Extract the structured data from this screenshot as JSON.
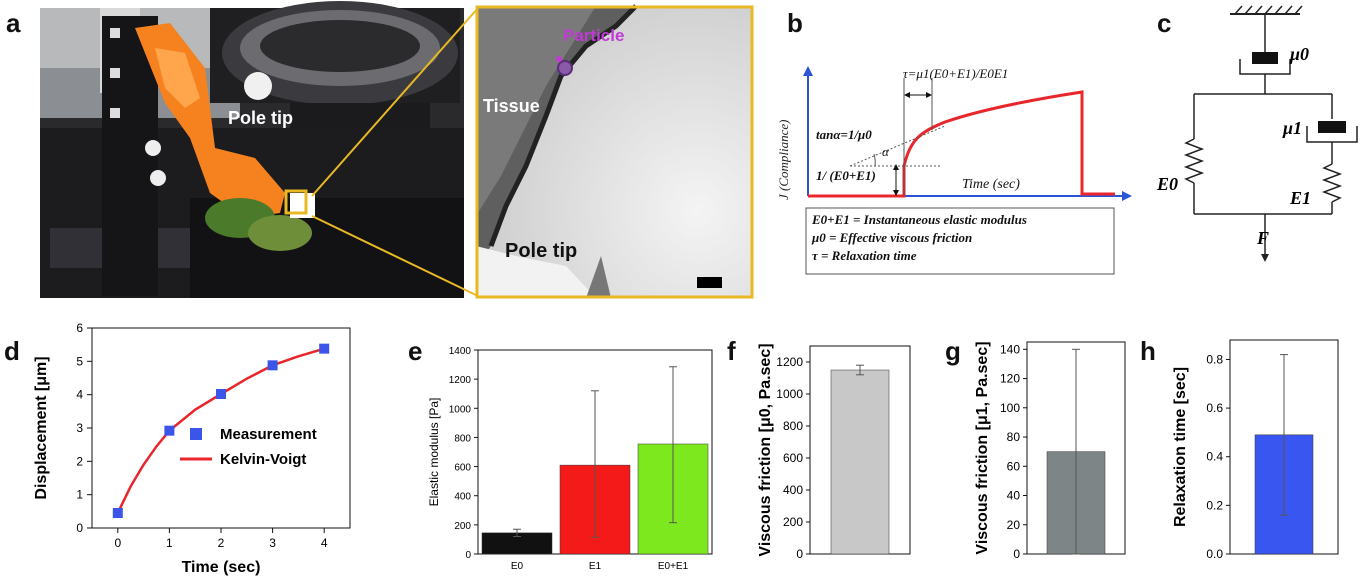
{
  "panel_labels": {
    "a": "a",
    "b": "b",
    "c": "c",
    "d": "d",
    "e": "e",
    "f": "f",
    "g": "g",
    "h": "h"
  },
  "panel_a": {
    "photo_label": "Pole tip",
    "inset": {
      "particle": "Particle",
      "tissue": "Tissue",
      "pole_tip": "Pole tip"
    },
    "colors": {
      "inset_frame": "#e8b923",
      "holder": "#f5821f",
      "particle": "#c03bd6"
    }
  },
  "panel_b": {
    "ylabel": "J (Compliance)",
    "xlabel": "Time (sec)",
    "tau_eq": "τ=μ1(E0+E1)/E0E1",
    "tan_eq": "tanα=1/μ0",
    "alpha": "α",
    "jump_eq": "1/ (E0+E1)",
    "legend": [
      "E0+E1 = Instantaneous elastic modulus",
      "μ0 = Effective viscous friction",
      "τ = Relaxation time"
    ],
    "colors": {
      "curve": "#e8262b",
      "axis": "#2b55d6"
    }
  },
  "panel_c": {
    "mu0": "μ0",
    "mu1": "μ1",
    "e0": "E0",
    "e1": "E1",
    "force": "F"
  },
  "chart_data": [
    {
      "id": "d",
      "type": "scatter",
      "xlabel": "Time (sec)",
      "ylabel": "Displacement [μm]",
      "xlim": [
        -0.5,
        4.5
      ],
      "ylim": [
        0,
        6
      ],
      "xticks": [
        "0",
        "1",
        "2",
        "3",
        "4"
      ],
      "yticks": [
        "0",
        "1",
        "2",
        "3",
        "4",
        "5",
        "6"
      ],
      "series": [
        {
          "name": "Measurement",
          "x": [
            0,
            1,
            2,
            3,
            4
          ],
          "y": [
            0.45,
            2.92,
            4.02,
            4.88,
            5.38
          ],
          "color": "#3a55e8"
        },
        {
          "name": "Kelvin-Voigt",
          "x": [
            0,
            0.25,
            0.5,
            0.75,
            1,
            1.5,
            2,
            2.5,
            3,
            3.5,
            4
          ],
          "y": [
            0.45,
            1.25,
            1.9,
            2.45,
            2.92,
            3.55,
            4.02,
            4.48,
            4.88,
            5.15,
            5.38
          ],
          "color": "#e8262b"
        }
      ],
      "legend_position": "center-right"
    },
    {
      "id": "e",
      "type": "bar",
      "ylabel": "Elastic modulus [Pa]",
      "categories": [
        "E0",
        "E1",
        "E0+E1"
      ],
      "values": [
        145,
        610,
        755
      ],
      "errors": [
        [
          120,
          170
        ],
        [
          115,
          1120
        ],
        [
          215,
          1285
        ]
      ],
      "colors": [
        "#111111",
        "#f51a1a",
        "#7de81e"
      ],
      "ylim": [
        0,
        1400
      ],
      "yticks": [
        "0",
        "200",
        "400",
        "600",
        "800",
        "1000",
        "1200",
        "1400"
      ]
    },
    {
      "id": "f",
      "type": "bar",
      "ylabel": "Viscous friction [μ0, Pa.sec]",
      "categories": [
        ""
      ],
      "values": [
        1150
      ],
      "errors": [
        [
          1120,
          1180
        ]
      ],
      "colors": [
        "#c8c8c8"
      ],
      "ylim": [
        0,
        1300
      ],
      "yticks": [
        "0",
        "200",
        "400",
        "600",
        "800",
        "1000",
        "1200"
      ]
    },
    {
      "id": "g",
      "type": "bar",
      "ylabel": "Viscous friction [μ1, Pa.sec]",
      "categories": [
        ""
      ],
      "values": [
        70
      ],
      "errors": [
        [
          0,
          140
        ]
      ],
      "colors": [
        "#7e8587"
      ],
      "ylim": [
        0,
        145
      ],
      "yticks": [
        "0",
        "20",
        "40",
        "60",
        "80",
        "100",
        "120",
        "140"
      ]
    },
    {
      "id": "h",
      "type": "bar",
      "ylabel": "Relaxation time [sec]",
      "categories": [
        ""
      ],
      "values": [
        0.49
      ],
      "errors": [
        [
          0.16,
          0.82
        ]
      ],
      "colors": [
        "#3a56f0"
      ],
      "ylim": [
        0,
        0.88
      ],
      "yticks": [
        "0.0",
        "0.2",
        "0.4",
        "0.6",
        "0.8"
      ]
    }
  ]
}
